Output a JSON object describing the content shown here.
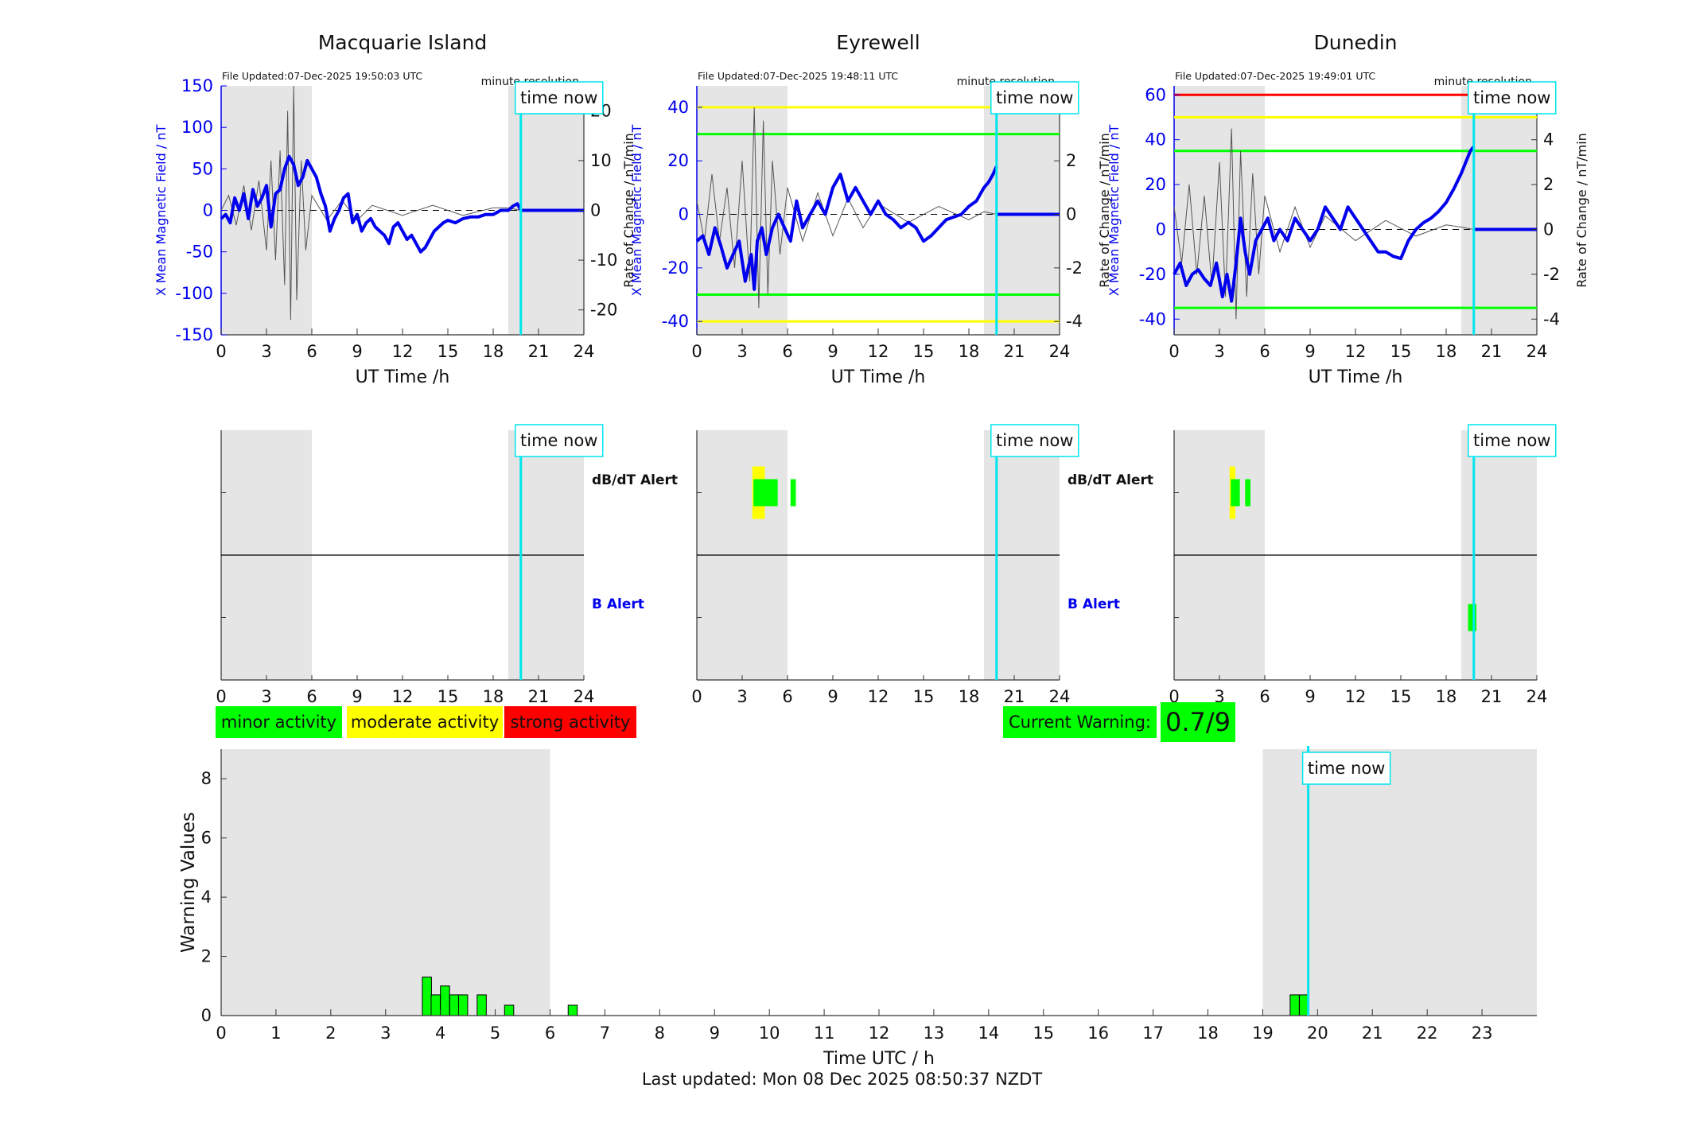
{
  "footer": {
    "last_updated": "Last updated: Mon 08 Dec 2025 08:50:37 NZDT"
  },
  "legend": {
    "minor": {
      "label": "minor activity",
      "color": "#00ff00"
    },
    "moderate": {
      "label": "moderate activity",
      "color": "#ffff00"
    },
    "strong": {
      "label": "strong activity",
      "color": "#ff0000"
    }
  },
  "current_warning": {
    "label": "Current Warning:",
    "value": "0.7/9",
    "color": "#00ff00"
  },
  "labels": {
    "time_now": "time now",
    "minute_resolution": "minute resolution",
    "dbdt_alert": "dB/dT Alert",
    "b_alert": "B Alert",
    "ut_time": "UT Time /h",
    "x_field": "X Mean Magnetic Field / nT",
    "rate": "Rate of Change / nT/min"
  },
  "chart_data": [
    {
      "type": "line",
      "station": "Macquarie Island",
      "title": "Macquarie Island",
      "file_updated": "File Updated:07-Dec-2025 19:50:03 UTC",
      "xlabel": "UT Time /h",
      "ylabel": "X Mean Magnetic Field / nT",
      "y2label": "Rate of Change / nT/min",
      "xlim": [
        0,
        24
      ],
      "xticks": [
        0,
        3,
        6,
        9,
        12,
        15,
        18,
        21,
        24
      ],
      "ylim": [
        -150,
        150
      ],
      "yticks": [
        -150,
        -100,
        -50,
        0,
        50,
        100,
        150
      ],
      "y2lim": [
        -25,
        25
      ],
      "y2ticks": [
        -20,
        -10,
        0,
        10,
        20
      ],
      "time_now": 19.83,
      "night_shading": [
        [
          0,
          6
        ],
        [
          19,
          24
        ]
      ],
      "thresholds_field": [],
      "series": [
        {
          "name": "X Mean Magnetic Field",
          "x": [
            0,
            0.3,
            0.6,
            0.9,
            1.2,
            1.5,
            1.8,
            2.1,
            2.4,
            2.7,
            3.0,
            3.3,
            3.6,
            3.9,
            4.2,
            4.5,
            4.8,
            5.1,
            5.4,
            5.7,
            6.0,
            6.3,
            6.6,
            6.9,
            7.2,
            7.5,
            7.8,
            8.1,
            8.4,
            8.7,
            9.0,
            9.3,
            9.6,
            9.9,
            10.2,
            10.5,
            10.8,
            11.1,
            11.4,
            11.7,
            12.0,
            12.3,
            12.6,
            12.9,
            13.2,
            13.5,
            13.8,
            14.1,
            14.4,
            14.7,
            15.0,
            15.5,
            16.0,
            16.5,
            17.0,
            17.5,
            18.0,
            18.5,
            19.0,
            19.3,
            19.6,
            19.83
          ],
          "y": [
            -10,
            -5,
            -15,
            15,
            0,
            20,
            -10,
            25,
            5,
            15,
            30,
            -20,
            20,
            25,
            50,
            65,
            55,
            30,
            40,
            60,
            50,
            40,
            20,
            5,
            -25,
            -10,
            0,
            15,
            20,
            -15,
            -5,
            -25,
            -15,
            -10,
            -20,
            -25,
            -30,
            -40,
            -20,
            -15,
            -25,
            -35,
            -30,
            -40,
            -50,
            -45,
            -35,
            -25,
            -20,
            -15,
            -12,
            -15,
            -10,
            -8,
            -8,
            -5,
            -5,
            0,
            0,
            5,
            8,
            0
          ]
        },
        {
          "name": "Rate of Change",
          "x": [
            0,
            0.5,
            1.0,
            1.5,
            2.0,
            2.5,
            3.0,
            3.3,
            3.6,
            3.9,
            4.2,
            4.4,
            4.6,
            4.8,
            5.0,
            5.3,
            5.6,
            6.0,
            7.0,
            8.0,
            9.0,
            10.0,
            12.0,
            14.0,
            16.0,
            18.0,
            19.0,
            19.83
          ],
          "y": [
            0,
            3,
            -3,
            5,
            -4,
            6,
            -8,
            10,
            -10,
            12,
            -15,
            20,
            -22,
            25,
            -18,
            10,
            -8,
            3,
            -2,
            2,
            -2,
            1,
            -1,
            1,
            -1,
            0.5,
            0.5,
            0
          ]
        }
      ]
    },
    {
      "type": "line",
      "station": "Eyrewell",
      "title": "Eyrewell",
      "file_updated": "File Updated:07-Dec-2025 19:48:11 UTC",
      "xlabel": "UT Time /h",
      "ylabel": "X Mean Magnetic Field / nT",
      "y2label": "Rate of Change / nT/min",
      "xlim": [
        0,
        24
      ],
      "xticks": [
        0,
        3,
        6,
        9,
        12,
        15,
        18,
        21,
        24
      ],
      "ylim": [
        -45,
        48
      ],
      "yticks": [
        -40,
        -20,
        0,
        20,
        40
      ],
      "y2lim": [
        -4.5,
        4.8
      ],
      "y2ticks": [
        -4,
        -2,
        0,
        2,
        4
      ],
      "time_now": 19.83,
      "night_shading": [
        [
          0,
          6
        ],
        [
          19,
          24
        ]
      ],
      "thresholds_field": [
        {
          "value": 40,
          "color": "#ffff00"
        },
        {
          "value": 30,
          "color": "#00ff00"
        },
        {
          "value": -30,
          "color": "#00ff00"
        },
        {
          "value": -40,
          "color": "#ffff00"
        }
      ],
      "series": [
        {
          "name": "X Mean Magnetic Field",
          "x": [
            0,
            0.4,
            0.8,
            1.2,
            1.6,
            2.0,
            2.4,
            2.8,
            3.2,
            3.6,
            3.8,
            4.0,
            4.3,
            4.6,
            5.0,
            5.4,
            5.8,
            6.2,
            6.6,
            7.0,
            7.5,
            8.0,
            8.5,
            9.0,
            9.5,
            10.0,
            10.5,
            11.0,
            11.5,
            12.0,
            12.5,
            13.0,
            13.5,
            14.0,
            14.5,
            15.0,
            15.5,
            16.0,
            16.5,
            17.0,
            17.5,
            18.0,
            18.5,
            19.0,
            19.3,
            19.6,
            19.83
          ],
          "y": [
            -10,
            -8,
            -15,
            -5,
            -12,
            -20,
            -15,
            -10,
            -25,
            -15,
            -28,
            -10,
            -5,
            -15,
            -5,
            0,
            -5,
            -10,
            5,
            -5,
            0,
            5,
            0,
            10,
            15,
            5,
            10,
            5,
            0,
            5,
            0,
            -2,
            -5,
            -3,
            -5,
            -10,
            -8,
            -5,
            -2,
            -1,
            0,
            3,
            5,
            10,
            12,
            15,
            18
          ]
        },
        {
          "name": "Rate of Change",
          "x": [
            0,
            0.5,
            1.0,
            1.5,
            2.0,
            2.5,
            3.0,
            3.5,
            3.8,
            4.1,
            4.4,
            4.7,
            5.0,
            5.5,
            6.0,
            7.0,
            8.0,
            9.0,
            10.0,
            11.0,
            12.0,
            14.0,
            16.0,
            18.0,
            19.0,
            19.83
          ],
          "y": [
            0.5,
            -1,
            1.5,
            -1,
            1,
            -2,
            2,
            -2.5,
            4,
            -3.5,
            3.5,
            -3,
            2,
            -1.5,
            1,
            -1,
            0.8,
            -0.8,
            0.6,
            -0.5,
            0.4,
            -0.3,
            0.3,
            -0.2,
            0.1,
            0
          ]
        }
      ]
    },
    {
      "type": "line",
      "station": "Dunedin",
      "title": "Dunedin",
      "file_updated": "File Updated:07-Dec-2025 19:49:01 UTC",
      "xlabel": "UT Time /h",
      "ylabel": "X Mean Magnetic Field / nT",
      "y2label": "Rate of Change / nT/min",
      "xlim": [
        0,
        24
      ],
      "xticks": [
        0,
        3,
        6,
        9,
        12,
        15,
        18,
        21,
        24
      ],
      "ylim": [
        -47,
        64
      ],
      "yticks": [
        -40,
        -20,
        0,
        20,
        40,
        60
      ],
      "y2lim": [
        -4.7,
        6.4
      ],
      "y2ticks": [
        -4,
        -2,
        0,
        2,
        4,
        6
      ],
      "time_now": 19.83,
      "night_shading": [
        [
          0,
          6
        ],
        [
          19,
          24
        ]
      ],
      "thresholds_field": [
        {
          "value": 60,
          "color": "#ff0000"
        },
        {
          "value": 50,
          "color": "#ffff00"
        },
        {
          "value": 35,
          "color": "#00ff00"
        },
        {
          "value": -35,
          "color": "#00ff00"
        }
      ],
      "series": [
        {
          "name": "X Mean Magnetic Field",
          "x": [
            0,
            0.4,
            0.8,
            1.2,
            1.6,
            2.0,
            2.4,
            2.8,
            3.2,
            3.5,
            3.8,
            4.1,
            4.4,
            4.7,
            5.0,
            5.4,
            5.8,
            6.2,
            6.6,
            7.0,
            7.5,
            8.0,
            8.5,
            9.0,
            9.5,
            10.0,
            10.5,
            11.0,
            11.5,
            12.0,
            12.5,
            13.0,
            13.5,
            14.0,
            14.5,
            15.0,
            15.5,
            16.0,
            16.5,
            17.0,
            17.5,
            18.0,
            18.5,
            19.0,
            19.3,
            19.6,
            19.83
          ],
          "y": [
            -20,
            -15,
            -25,
            -20,
            -18,
            -22,
            -25,
            -15,
            -30,
            -20,
            -32,
            -15,
            5,
            -10,
            -20,
            -5,
            0,
            5,
            -5,
            0,
            -5,
            5,
            0,
            -5,
            0,
            10,
            5,
            0,
            10,
            5,
            0,
            -5,
            -10,
            -10,
            -12,
            -13,
            -5,
            0,
            3,
            5,
            8,
            12,
            18,
            25,
            30,
            35,
            37
          ]
        },
        {
          "name": "Rate of Change",
          "x": [
            0,
            0.5,
            1.0,
            1.5,
            2.0,
            2.5,
            3.0,
            3.4,
            3.8,
            4.1,
            4.4,
            4.8,
            5.2,
            5.6,
            6.0,
            7.0,
            8.0,
            9.0,
            10.0,
            12.0,
            14.0,
            16.0,
            18.0,
            19.0,
            19.83
          ],
          "y": [
            1,
            -1.5,
            2,
            -2,
            1.5,
            -2.5,
            3,
            -3,
            4.5,
            -4,
            3.5,
            -3,
            2.5,
            -2,
            1.5,
            -1,
            1,
            -0.8,
            0.6,
            -0.5,
            0.4,
            -0.3,
            0.2,
            0.1,
            0
          ]
        }
      ]
    },
    {
      "type": "bar",
      "station": "Macquarie Island",
      "panel": "alerts",
      "xlim": [
        0,
        24
      ],
      "xticks": [
        0,
        3,
        6,
        9,
        12,
        15,
        18,
        21,
        24
      ],
      "time_now": 19.83,
      "night_shading": [
        [
          0,
          6
        ],
        [
          19,
          24
        ]
      ],
      "alert_rows": [
        "dB/dT Alert",
        "B Alert"
      ],
      "dbdt_alerts": [],
      "b_alerts": []
    },
    {
      "type": "bar",
      "station": "Eyrewell",
      "panel": "alerts",
      "xlim": [
        0,
        24
      ],
      "xticks": [
        0,
        3,
        6,
        9,
        12,
        15,
        18,
        21,
        24
      ],
      "time_now": 19.83,
      "night_shading": [
        [
          0,
          6
        ],
        [
          19,
          24
        ]
      ],
      "alert_rows": [
        "dB/dT Alert",
        "B Alert"
      ],
      "dbdt_alerts": [
        {
          "start": 3.67,
          "end": 4.5,
          "level": "moderate"
        },
        {
          "start": 3.75,
          "end": 4.5,
          "level": "minor"
        },
        {
          "start": 4.5,
          "end": 5.0,
          "level": "minor"
        },
        {
          "start": 5.0,
          "end": 5.35,
          "level": "minor"
        },
        {
          "start": 6.2,
          "end": 6.55,
          "level": "minor"
        }
      ],
      "b_alerts": []
    },
    {
      "type": "bar",
      "station": "Dunedin",
      "panel": "alerts",
      "xlim": [
        0,
        24
      ],
      "xticks": [
        0,
        3,
        6,
        9,
        12,
        15,
        18,
        21,
        24
      ],
      "time_now": 19.83,
      "night_shading": [
        [
          0,
          6
        ],
        [
          19,
          24
        ]
      ],
      "alert_rows": [
        "dB/dT Alert",
        "B Alert"
      ],
      "dbdt_alerts": [
        {
          "start": 3.67,
          "end": 4.05,
          "level": "moderate"
        },
        {
          "start": 3.75,
          "end": 4.35,
          "level": "minor"
        },
        {
          "start": 4.7,
          "end": 5.05,
          "level": "minor"
        }
      ],
      "b_alerts": [
        {
          "start": 19.45,
          "end": 20.0,
          "level": "minor"
        }
      ]
    },
    {
      "type": "bar",
      "panel": "warning",
      "xlabel": "Time UTC / h",
      "ylabel": "Warning Values",
      "xlim": [
        0,
        24
      ],
      "xticks": [
        0,
        1,
        2,
        3,
        4,
        5,
        6,
        7,
        8,
        9,
        10,
        11,
        12,
        13,
        14,
        15,
        16,
        17,
        18,
        19,
        20,
        21,
        22,
        23
      ],
      "ylim": [
        0,
        9
      ],
      "yticks": [
        0,
        2,
        4,
        6,
        8
      ],
      "time_now": 19.83,
      "night_shading": [
        [
          0,
          6
        ],
        [
          19,
          24
        ]
      ],
      "bar_color": "#00ff00",
      "bar_width": 0.1667,
      "bars": [
        {
          "x": 3.67,
          "value": 1.3
        },
        {
          "x": 3.83,
          "value": 0.7
        },
        {
          "x": 4.0,
          "value": 1.0
        },
        {
          "x": 4.17,
          "value": 0.7
        },
        {
          "x": 4.33,
          "value": 0.7
        },
        {
          "x": 4.67,
          "value": 0.7
        },
        {
          "x": 5.17,
          "value": 0.35
        },
        {
          "x": 6.33,
          "value": 0.35
        },
        {
          "x": 19.5,
          "value": 0.7
        },
        {
          "x": 19.67,
          "value": 0.7
        }
      ]
    }
  ]
}
